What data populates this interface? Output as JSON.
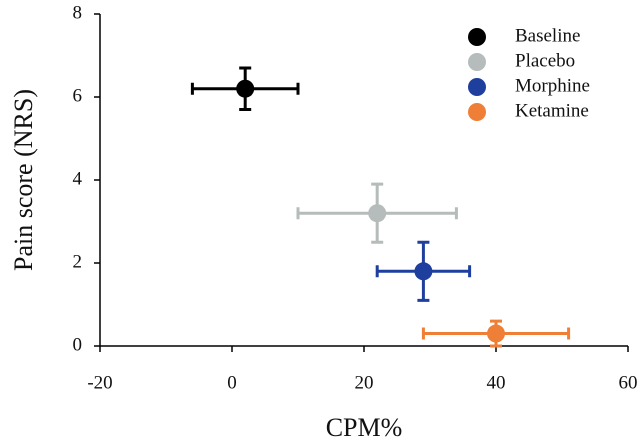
{
  "chart_data": {
    "type": "scatter",
    "xlabel": "CPM%",
    "ylabel": "Pain score (NRS)",
    "xlim": [
      -20,
      60
    ],
    "xticks": [
      -20,
      0,
      20,
      40,
      60
    ],
    "ylim": [
      0,
      8
    ],
    "yticks": [
      0,
      2,
      4,
      6,
      8
    ],
    "legend": "upper right",
    "series": [
      {
        "name": "Baseline",
        "color": "#000000",
        "x": [
          2
        ],
        "values": [
          6.2
        ],
        "xerr": [
          8
        ],
        "yerr": [
          0.5
        ]
      },
      {
        "name": "Placebo",
        "color": "#b5bcbb",
        "x": [
          22
        ],
        "values": [
          3.2
        ],
        "xerr": [
          12
        ],
        "yerr": [
          0.7
        ]
      },
      {
        "name": "Morphine",
        "color": "#1f3f9e",
        "x": [
          29
        ],
        "values": [
          1.8
        ],
        "xerr": [
          7
        ],
        "yerr": [
          0.7
        ]
      },
      {
        "name": "Ketamine",
        "color": "#ef7f36",
        "x": [
          40
        ],
        "values": [
          0.3
        ],
        "xerr": [
          11
        ],
        "yerr": [
          0.3
        ]
      }
    ]
  }
}
